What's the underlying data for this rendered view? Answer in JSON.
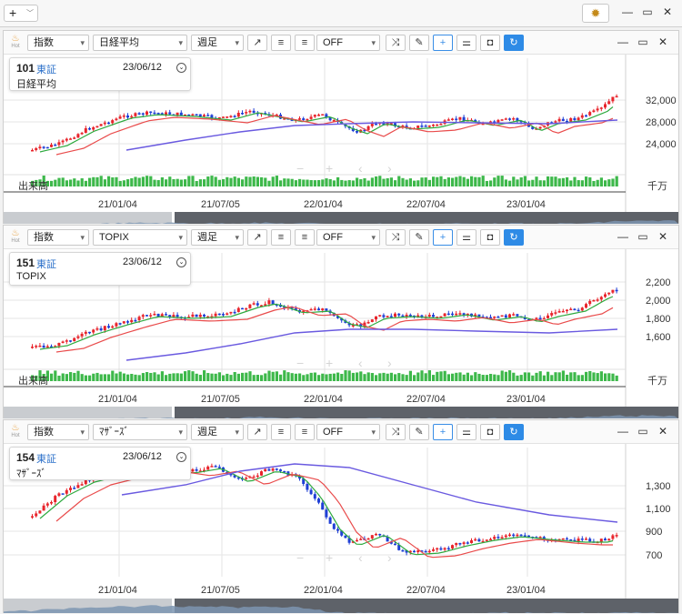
{
  "topbar": {
    "plus_label": "+"
  },
  "panels": [
    {
      "toolbar": {
        "type": "指数",
        "symbol": "日経平均",
        "period": "週足",
        "off": "OFF"
      },
      "info": {
        "code": "101",
        "exchange": "東証",
        "date": "23/06/12",
        "name": "日経平均"
      },
      "y_ticks": [
        "32,000",
        "28,000",
        "24,000"
      ],
      "volume_label": "出来高",
      "unit": "千万",
      "x_ticks": [
        "21/01/04",
        "21/07/05",
        "22/01/04",
        "22/07/04",
        "23/01/04"
      ]
    },
    {
      "toolbar": {
        "type": "指数",
        "symbol": "TOPIX",
        "period": "週足",
        "off": "OFF"
      },
      "info": {
        "code": "151",
        "exchange": "東証",
        "date": "23/06/12",
        "name": "TOPIX"
      },
      "y_ticks": [
        "2,200",
        "2,000",
        "1,800",
        "1,600"
      ],
      "volume_label": "出来高",
      "unit": "千万",
      "x_ticks": [
        "21/01/04",
        "21/07/05",
        "22/01/04",
        "22/07/04",
        "23/01/04"
      ]
    },
    {
      "toolbar": {
        "type": "指数",
        "symbol": "ﾏｻﾞｰｽﾞ",
        "period": "週足",
        "off": "OFF"
      },
      "info": {
        "code": "154",
        "exchange": "東証",
        "date": "23/06/12",
        "name": "ﾏｻﾞｰｽﾞ"
      },
      "y_ticks": [
        "1,300",
        "1,100",
        "900",
        "700"
      ],
      "x_ticks": [
        "21/01/04",
        "21/07/05",
        "22/01/04",
        "22/07/04",
        "23/01/04"
      ]
    }
  ],
  "colors": {
    "up": "#e8242b",
    "down": "#1f3fd6",
    "ma_short": "#2eaa3f",
    "ma_mid": "#e94b4b",
    "ma_long": "#6a5ae0",
    "volume": "#3db84a"
  }
}
